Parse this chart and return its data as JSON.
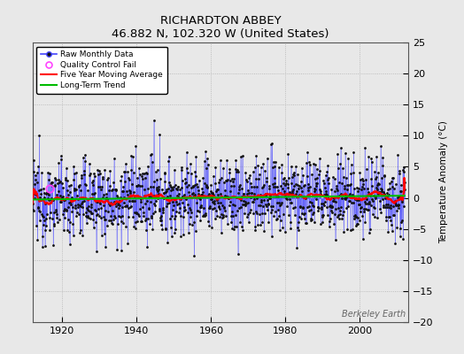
{
  "title": "RICHARDTON ABBEY",
  "subtitle": "46.882 N, 102.320 W (United States)",
  "ylabel": "Temperature Anomaly (°C)",
  "xlabel_years": [
    1920,
    1940,
    1960,
    1980,
    2000
  ],
  "ylim": [
    -20,
    25
  ],
  "yticks": [
    -20,
    -15,
    -10,
    -5,
    0,
    5,
    10,
    15,
    20,
    25
  ],
  "xlim": [
    1912,
    2013
  ],
  "year_start": 1912,
  "year_end": 2012,
  "background_color": "#e8e8e8",
  "plot_bg_color": "#e8e8e8",
  "raw_line_color": "#4444ff",
  "raw_dot_color": "#111111",
  "qc_fail_color": "#ff44ff",
  "moving_avg_color": "#ff0000",
  "trend_color": "#00bb00",
  "watermark": "Berkeley Earth",
  "seed": 12345
}
